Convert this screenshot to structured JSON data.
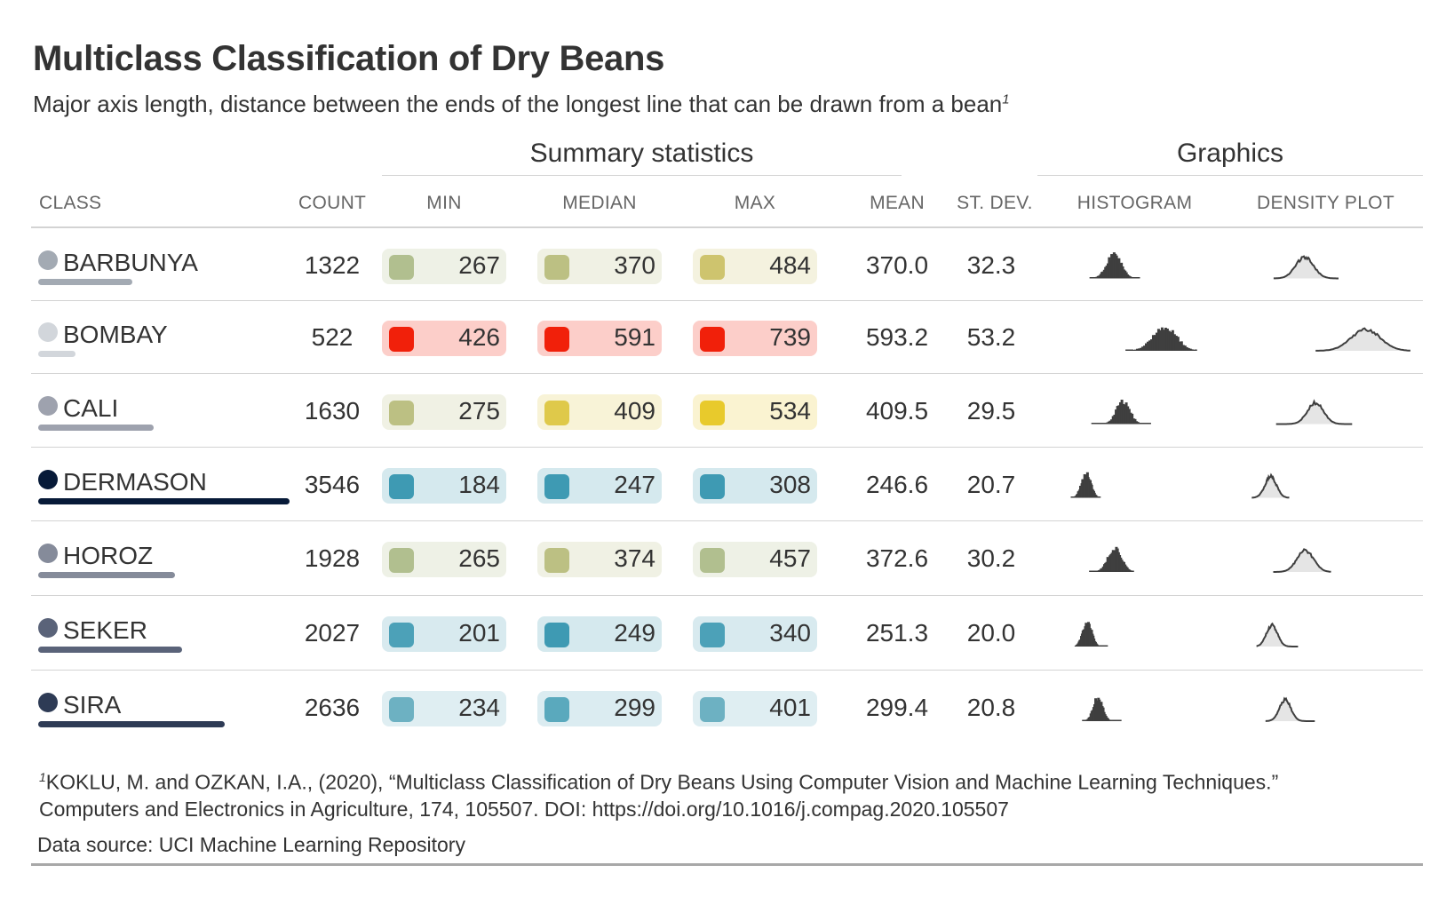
{
  "title": "Multiclass Classification of Dry Beans",
  "subtitle": "Major axis length, distance between the ends of the longest line that can be drawn from a bean",
  "subtitle_footnote_mark": "1",
  "spanners": {
    "summary": "Summary statistics",
    "graphics": "Graphics"
  },
  "columns": {
    "class": "CLASS",
    "count": "COUNT",
    "min": "MIN",
    "median": "MEDIAN",
    "max": "MAX",
    "mean": "MEAN",
    "sd": "ST. DEV.",
    "histogram": "HISTOGRAM",
    "density": "DENSITY PLOT"
  },
  "footnote": {
    "mark": "1",
    "line1": "KOKLU, M. and OZKAN, I.A., (2020), “Multiclass Classification of Dry Beans Using Computer Vision and Machine Learning Techniques.”",
    "line2": "Computers and Electronics in Agriculture, 174, 105507. DOI: https://doi.org/10.1016/j.compag.2020.105507"
  },
  "source_note": "Data source: UCI Machine Learning Repository",
  "chart_data": {
    "type": "table",
    "count_max": 3546,
    "rows": [
      {
        "class": "BARBUNYA",
        "color": "#a3aab3",
        "count": 1322,
        "min": 267,
        "median": 370,
        "max": 484,
        "mean": "370.0",
        "sd": "32.3",
        "min_color": "#b1bf8f",
        "median_color": "#bcc083",
        "max_color": "#cec46e"
      },
      {
        "class": "BOMBAY",
        "color": "#d2d6db",
        "count": 522,
        "min": 426,
        "median": 591,
        "max": 739,
        "mean": "593.2",
        "sd": "53.2",
        "min_color": "#f1200a",
        "median_color": "#f1200a",
        "max_color": "#f1200a"
      },
      {
        "class": "CALI",
        "color": "#9ea2ae",
        "count": 1630,
        "min": 275,
        "median": 409,
        "max": 534,
        "mean": "409.5",
        "sd": "29.5",
        "min_color": "#bcc083",
        "median_color": "#dfc94a",
        "max_color": "#e8ca2c"
      },
      {
        "class": "DERMASON",
        "color": "#071a38",
        "count": 3546,
        "min": 184,
        "median": 247,
        "max": 308,
        "mean": "246.6",
        "sd": "20.7",
        "min_color": "#3e9ab3",
        "median_color": "#3e9ab3",
        "max_color": "#3e9ab3"
      },
      {
        "class": "HOROZ",
        "color": "#858b9a",
        "count": 1928,
        "min": 265,
        "median": 374,
        "max": 457,
        "mean": "372.6",
        "sd": "30.2",
        "min_color": "#b1bf8f",
        "median_color": "#bcc083",
        "max_color": "#b1bf8f"
      },
      {
        "class": "SEKER",
        "color": "#5a6379",
        "count": 2027,
        "min": 201,
        "median": 249,
        "max": 340,
        "mean": "251.3",
        "sd": "20.0",
        "min_color": "#4ca1b8",
        "median_color": "#3e9ab3",
        "max_color": "#4ca1b8"
      },
      {
        "class": "SIRA",
        "color": "#2e3b55",
        "count": 2636,
        "min": 234,
        "median": 299,
        "max": 401,
        "mean": "299.4",
        "sd": "20.8",
        "min_color": "#6db1c2",
        "median_color": "#5aa9bd",
        "max_color": "#6db1c2"
      }
    ],
    "graphics_range": [
      180,
      740
    ]
  }
}
